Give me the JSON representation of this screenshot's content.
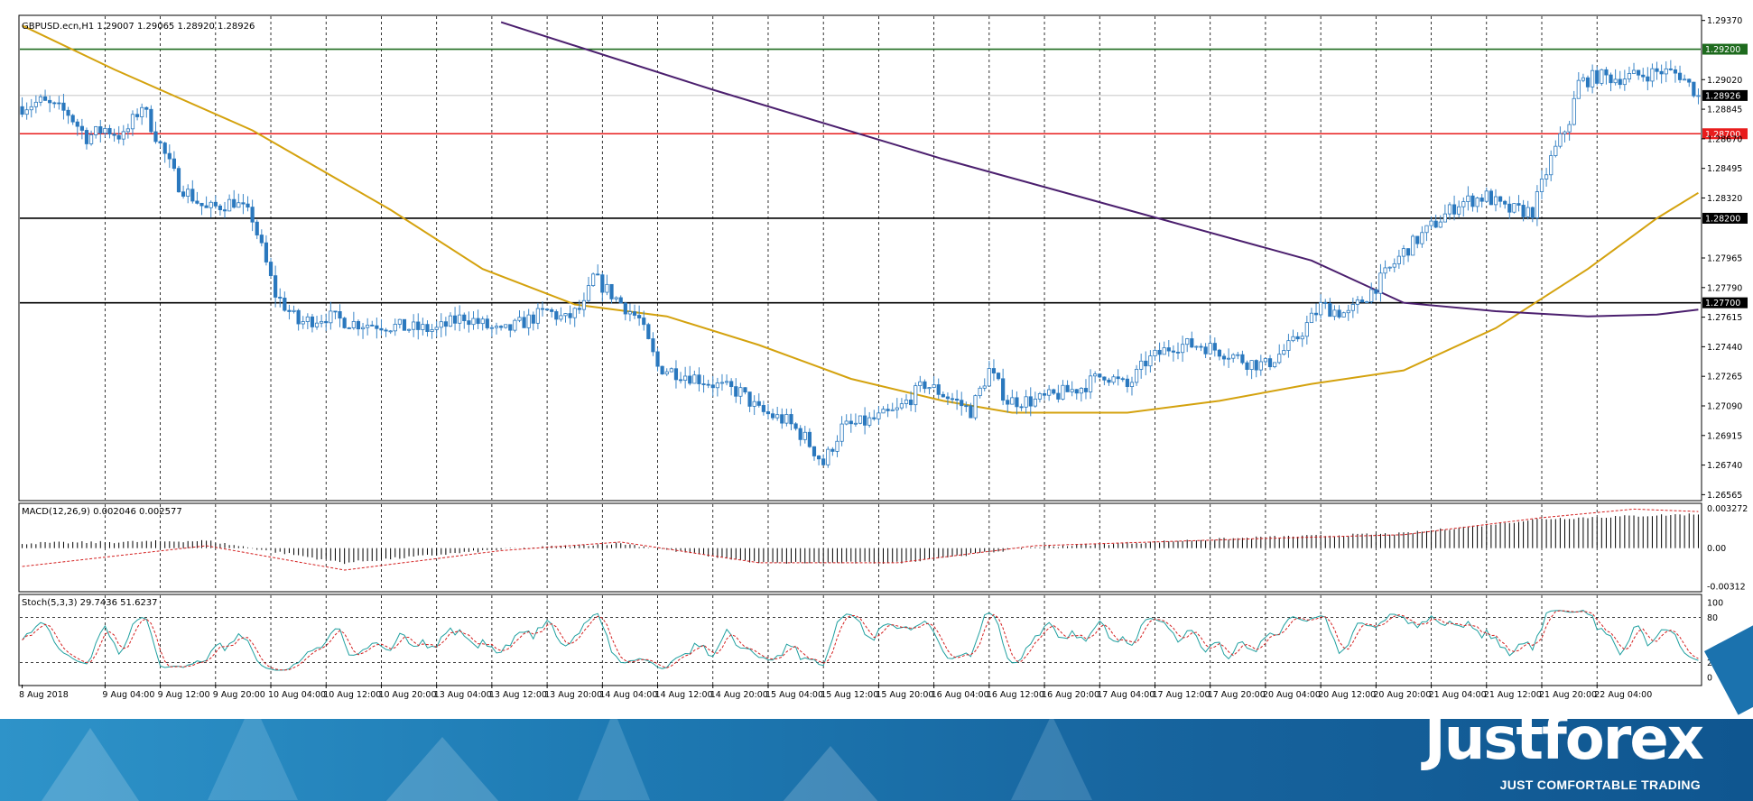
{
  "window": {
    "symbol_header": "GBPUSD.ecn,H1  1.29007 1.29065 1.28920 1.28926"
  },
  "chart_data": {
    "type": "candlestick",
    "symbol": "GBPUSD.ecn",
    "timeframe": "H1",
    "ohlc_readout": {
      "open": 1.29007,
      "high": 1.29065,
      "low": 1.2892,
      "close": 1.28926
    },
    "price_axis_ticks": [
      "1.29370",
      "1.29020",
      "1.28845",
      "1.28670",
      "1.28495",
      "1.28320",
      "1.27965",
      "1.27790",
      "1.27615",
      "1.27440",
      "1.27265",
      "1.27090",
      "1.26915",
      "1.26740",
      "1.26565"
    ],
    "price_ticks_num": [
      1.2937,
      1.2902,
      1.28845,
      1.2867,
      1.28495,
      1.2832,
      1.27965,
      1.2779,
      1.27615,
      1.2744,
      1.27265,
      1.2709,
      1.26915,
      1.2674,
      1.26565
    ],
    "ylim": [
      1.26535,
      1.29395
    ],
    "time_axis_labels": [
      "8 Aug 2018",
      "9 Aug 04:00",
      "9 Aug 12:00",
      "9 Aug 20:00",
      "10 Aug 04:00",
      "10 Aug 12:00",
      "10 Aug 20:00",
      "13 Aug 04:00",
      "13 Aug 12:00",
      "13 Aug 20:00",
      "14 Aug 04:00",
      "14 Aug 12:00",
      "14 Aug 20:00",
      "15 Aug 04:00",
      "15 Aug 12:00",
      "15 Aug 20:00",
      "16 Aug 04:00",
      "16 Aug 12:00",
      "16 Aug 20:00",
      "17 Aug 04:00",
      "17 Aug 12:00",
      "17 Aug 20:00",
      "20 Aug 04:00",
      "20 Aug 12:00",
      "20 Aug 20:00",
      "21 Aug 04:00",
      "21 Aug 12:00",
      "21 Aug 20:00",
      "22 Aug 04:00"
    ],
    "bar_count": 234,
    "anchors": [
      [
        0,
        1.2886
      ],
      [
        4,
        1.2889
      ],
      [
        10,
        1.2882
      ],
      [
        14,
        1.2868
      ],
      [
        18,
        1.2873
      ],
      [
        22,
        1.2868
      ],
      [
        26,
        1.2887
      ],
      [
        28,
        1.2875
      ],
      [
        34,
        1.284
      ],
      [
        40,
        1.2825
      ],
      [
        46,
        1.283
      ],
      [
        50,
        1.282
      ],
      [
        55,
        1.2775
      ],
      [
        60,
        1.2758
      ],
      [
        66,
        1.2762
      ],
      [
        72,
        1.2758
      ],
      [
        78,
        1.2757
      ],
      [
        84,
        1.2755
      ],
      [
        90,
        1.2754
      ],
      [
        96,
        1.2762
      ],
      [
        104,
        1.2752
      ],
      [
        110,
        1.276
      ],
      [
        114,
        1.2765
      ],
      [
        118,
        1.276
      ],
      [
        122,
        1.2768
      ],
      [
        124,
        1.2785
      ],
      [
        126,
        1.278
      ],
      [
        130,
        1.277
      ],
      [
        134,
        1.276
      ],
      [
        138,
        1.2732
      ],
      [
        146,
        1.2726
      ],
      [
        152,
        1.272
      ],
      [
        156,
        1.2717
      ],
      [
        160,
        1.2706
      ],
      [
        166,
        1.27
      ],
      [
        170,
        1.269
      ],
      [
        174,
        1.2675
      ],
      [
        178,
        1.2696
      ],
      [
        184,
        1.27
      ],
      [
        190,
        1.2706
      ],
      [
        196,
        1.2722
      ],
      [
        202,
        1.2713
      ],
      [
        206,
        1.2706
      ],
      [
        210,
        1.273
      ],
      [
        214,
        1.2712
      ],
      [
        220,
        1.2712
      ],
      [
        224,
        1.2715
      ],
      [
        230,
        1.272
      ],
      [
        235,
        1.2728
      ],
      [
        240,
        1.272
      ],
      [
        244,
        1.2735
      ],
      [
        250,
        1.2745
      ],
      [
        256,
        1.2745
      ],
      [
        262,
        1.274
      ],
      [
        266,
        1.2735
      ],
      [
        270,
        1.2733
      ],
      [
        276,
        1.2746
      ],
      [
        282,
        1.2768
      ],
      [
        288,
        1.2763
      ],
      [
        294,
        1.278
      ],
      [
        300,
        1.28
      ],
      [
        306,
        1.2815
      ],
      [
        312,
        1.2829
      ],
      [
        318,
        1.2833
      ],
      [
        322,
        1.2825
      ],
      [
        328,
        1.2824
      ],
      [
        332,
        1.2855
      ],
      [
        336,
        1.2878
      ],
      [
        338,
        1.29
      ],
      [
        342,
        1.2904
      ],
      [
        346,
        1.2903
      ],
      [
        350,
        1.2904
      ],
      [
        356,
        1.2907
      ],
      [
        360,
        1.2905
      ],
      [
        364,
        1.2893
      ]
    ],
    "horizontal_levels": [
      {
        "price": 1.292,
        "label": "1.29200",
        "color": "#1e6b1e"
      },
      {
        "price": 1.287,
        "label": "1.28700",
        "color": "#e81c1c"
      },
      {
        "price": 1.282,
        "label": "1.28200",
        "color": "#000000"
      },
      {
        "price": 1.277,
        "label": "1.27700",
        "color": "#000000"
      }
    ],
    "current_price_label": "1.28926",
    "current_price": 1.28926,
    "ma_fast": {
      "color": "#d4a20e",
      "points": [
        [
          0,
          1.2934
        ],
        [
          20,
          1.2908
        ],
        [
          50,
          1.2872
        ],
        [
          80,
          1.2825
        ],
        [
          100,
          1.279
        ],
        [
          120,
          1.2769
        ],
        [
          140,
          1.2762
        ],
        [
          160,
          1.2745
        ],
        [
          180,
          1.2725
        ],
        [
          200,
          1.2712
        ],
        [
          215,
          1.2705
        ],
        [
          240,
          1.2705
        ],
        [
          260,
          1.2712
        ],
        [
          280,
          1.2722
        ],
        [
          300,
          1.273
        ],
        [
          320,
          1.2755
        ],
        [
          340,
          1.279
        ],
        [
          355,
          1.282
        ],
        [
          364,
          1.2835
        ]
      ]
    },
    "ma_slow": {
      "color": "#4b1f6e",
      "points": [
        [
          104,
          1.2936
        ],
        [
          150,
          1.2896
        ],
        [
          200,
          1.2855
        ],
        [
          240,
          1.2825
        ],
        [
          280,
          1.2795
        ],
        [
          300,
          1.277
        ],
        [
          320,
          1.2765
        ],
        [
          340,
          1.2762
        ],
        [
          355,
          1.2763
        ],
        [
          364,
          1.2766
        ]
      ]
    },
    "macd": {
      "label": "MACD(12,26,9) 0.002046 0.002577",
      "ticks": [
        "0.003272",
        "0.00",
        "-0.00312"
      ],
      "ticks_num": [
        0.003272,
        0.0,
        -0.00312
      ],
      "range": [
        -0.0035,
        0.0036
      ],
      "hist_anchors": [
        [
          0,
          0.0004
        ],
        [
          40,
          0.0006
        ],
        [
          70,
          -0.0012
        ],
        [
          104,
          -0.0001
        ],
        [
          130,
          0.0004
        ],
        [
          160,
          -0.0012
        ],
        [
          190,
          -0.0012
        ],
        [
          220,
          0.0001
        ],
        [
          270,
          0.0009
        ],
        [
          300,
          0.0012
        ],
        [
          330,
          0.0024
        ],
        [
          364,
          0.0028
        ]
      ],
      "signal_anchors": [
        [
          0,
          -0.0015
        ],
        [
          40,
          0.0002
        ],
        [
          70,
          -0.0018
        ],
        [
          104,
          -0.0002
        ],
        [
          130,
          0.0005
        ],
        [
          160,
          -0.0012
        ],
        [
          190,
          -0.0012
        ],
        [
          220,
          0.0002
        ],
        [
          270,
          0.0008
        ],
        [
          300,
          0.0011
        ],
        [
          330,
          0.0025
        ],
        [
          350,
          0.0032
        ],
        [
          364,
          0.003
        ]
      ]
    },
    "stochastic": {
      "label": "Stoch(5,3,3) 29.7436 51.6237",
      "ticks": [
        "100",
        "80",
        "20",
        "0"
      ],
      "ticks_num": [
        100,
        80,
        20,
        0
      ],
      "levels": [
        80,
        20
      ]
    }
  },
  "footer": {
    "brand": "Justforex",
    "slogan": "JUST COMFORTABLE TRADING"
  }
}
